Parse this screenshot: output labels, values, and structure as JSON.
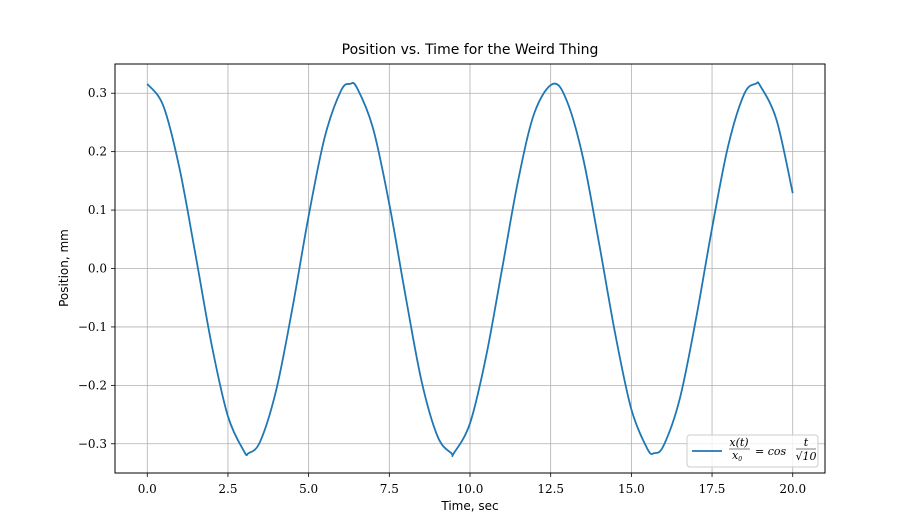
{
  "chart_data": {
    "type": "line",
    "title": "Position vs.  Time for the Weird Thing",
    "xlabel": "Time, sec",
    "ylabel": "Position, mm",
    "xlim": [
      -1.0,
      21.0
    ],
    "ylim": [
      -0.35,
      0.35
    ],
    "xticks": [
      0.0,
      2.5,
      5.0,
      7.5,
      10.0,
      12.5,
      15.0,
      17.5,
      20.0
    ],
    "xtick_labels": [
      "0.0",
      "2.5",
      "5.0",
      "7.5",
      "10.0",
      "12.5",
      "15.0",
      "17.5",
      "20.0"
    ],
    "yticks": [
      -0.3,
      -0.2,
      -0.1,
      0.0,
      0.1,
      0.2,
      0.3
    ],
    "ytick_labels": [
      "−0.3",
      "−0.2",
      "−0.1",
      "0.0",
      "0.1",
      "0.2",
      "0.3"
    ],
    "grid": true,
    "legend_position": "lower-right",
    "series": [
      {
        "name": "x(t)/x0 = cos t/√10",
        "color": "#1f77b4",
        "x": [
          0.0,
          0.5,
          1.0,
          1.5,
          2.0,
          2.5,
          3.0,
          3.14,
          3.5,
          4.0,
          4.5,
          5.0,
          5.5,
          6.0,
          6.28,
          6.5,
          7.0,
          7.5,
          8.0,
          8.5,
          9.0,
          9.42,
          9.5,
          10.0,
          10.5,
          11.0,
          11.5,
          12.0,
          12.57,
          13.0,
          13.5,
          14.0,
          14.5,
          15.0,
          15.5,
          15.71,
          16.0,
          16.5,
          17.0,
          17.5,
          18.0,
          18.5,
          18.85,
          19.0,
          19.5,
          20.0
        ],
        "y": [
          0.316,
          0.278,
          0.171,
          0.022,
          -0.132,
          -0.253,
          -0.313,
          -0.316,
          -0.296,
          -0.207,
          -0.067,
          0.09,
          0.225,
          0.304,
          0.316,
          0.309,
          0.239,
          0.11,
          -0.046,
          -0.193,
          -0.288,
          -0.316,
          -0.316,
          -0.265,
          -0.15,
          0.001,
          0.153,
          0.267,
          0.316,
          0.287,
          0.19,
          0.043,
          -0.112,
          -0.241,
          -0.309,
          -0.316,
          -0.303,
          -0.223,
          -0.087,
          0.069,
          0.21,
          0.299,
          0.316,
          0.312,
          0.254,
          0.129
        ]
      }
    ]
  },
  "legend": {
    "label_lhs_num": "x(t)",
    "label_lhs_den": "x",
    "label_lhs_den_sub": "0",
    "label_eq": "= cos",
    "label_rhs_num": "t",
    "label_rhs_den": "√10"
  }
}
